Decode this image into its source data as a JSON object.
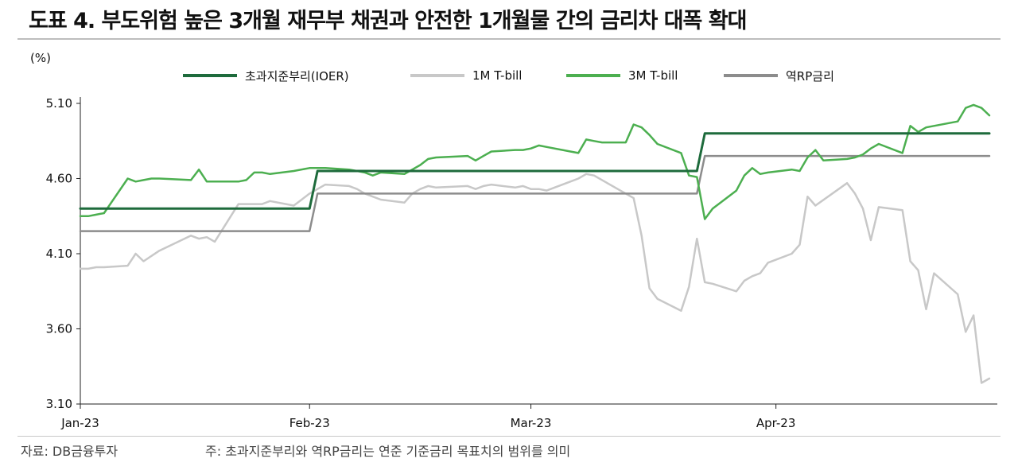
{
  "title": "도표 4. 부도위험 높은 3개월 재무부 채권과 안전한 1개월물 간의 금리차 대폭 확대",
  "unit_label": "(%)",
  "source": "자료: DB금융투자",
  "note": "주: 초과지준부리와 역RP금리는 연준 기준금리 목표치의 범위를 의미",
  "chart_data": {
    "type": "line",
    "title": "",
    "xlabel": "",
    "ylabel": "(%)",
    "ylim": [
      3.1,
      5.1
    ],
    "yticks": [
      "5.10",
      "4.60",
      "4.10",
      "3.60",
      "3.10"
    ],
    "xticks": [
      "Jan-23",
      "Feb-23",
      "Mar-23",
      "Apr-23"
    ],
    "xticks_dates": [
      "2023-01-03",
      "2023-02-01",
      "2023-03-01",
      "2023-04-01"
    ],
    "x_range": [
      "2023-01-03",
      "2023-04-28"
    ],
    "grid": false,
    "legend_position": "top",
    "series": [
      {
        "name": "초과지준부리(IOER)",
        "color": "#1e6b3c",
        "points": [
          [
            "2023-01-03",
            4.4
          ],
          [
            "2023-02-01",
            4.4
          ],
          [
            "2023-02-02",
            4.65
          ],
          [
            "2023-03-22",
            4.65
          ],
          [
            "2023-03-23",
            4.9
          ],
          [
            "2023-04-28",
            4.9
          ]
        ]
      },
      {
        "name": "1M T-bill",
        "color": "#c8c8c8",
        "points": [
          [
            "2023-01-03",
            4.0
          ],
          [
            "2023-01-04",
            4.0
          ],
          [
            "2023-01-05",
            4.01
          ],
          [
            "2023-01-06",
            4.01
          ],
          [
            "2023-01-09",
            4.02
          ],
          [
            "2023-01-10",
            4.1
          ],
          [
            "2023-01-11",
            4.05
          ],
          [
            "2023-01-13",
            4.12
          ],
          [
            "2023-01-17",
            4.22
          ],
          [
            "2023-01-18",
            4.2
          ],
          [
            "2023-01-19",
            4.21
          ],
          [
            "2023-01-20",
            4.18
          ],
          [
            "2023-01-23",
            4.43
          ],
          [
            "2023-01-24",
            4.43
          ],
          [
            "2023-01-25",
            4.43
          ],
          [
            "2023-01-26",
            4.43
          ],
          [
            "2023-01-27",
            4.45
          ],
          [
            "2023-01-30",
            4.42
          ],
          [
            "2023-01-31",
            4.46
          ],
          [
            "2023-02-01",
            4.5
          ],
          [
            "2023-02-03",
            4.56
          ],
          [
            "2023-02-06",
            4.55
          ],
          [
            "2023-02-07",
            4.53
          ],
          [
            "2023-02-08",
            4.5
          ],
          [
            "2023-02-09",
            4.48
          ],
          [
            "2023-02-10",
            4.46
          ],
          [
            "2023-02-13",
            4.44
          ],
          [
            "2023-02-14",
            4.5
          ],
          [
            "2023-02-15",
            4.53
          ],
          [
            "2023-02-16",
            4.55
          ],
          [
            "2023-02-17",
            4.54
          ],
          [
            "2023-02-21",
            4.55
          ],
          [
            "2023-02-22",
            4.53
          ],
          [
            "2023-02-23",
            4.55
          ],
          [
            "2023-02-24",
            4.56
          ],
          [
            "2023-02-27",
            4.54
          ],
          [
            "2023-02-28",
            4.55
          ],
          [
            "2023-03-01",
            4.53
          ],
          [
            "2023-03-02",
            4.53
          ],
          [
            "2023-03-03",
            4.52
          ],
          [
            "2023-03-06",
            4.58
          ],
          [
            "2023-03-07",
            4.6
          ],
          [
            "2023-03-08",
            4.63
          ],
          [
            "2023-03-09",
            4.62
          ],
          [
            "2023-03-10",
            4.59
          ],
          [
            "2023-03-13",
            4.5
          ],
          [
            "2023-03-14",
            4.47
          ],
          [
            "2023-03-15",
            4.22
          ],
          [
            "2023-03-16",
            3.87
          ],
          [
            "2023-03-17",
            3.8
          ],
          [
            "2023-03-20",
            3.72
          ],
          [
            "2023-03-21",
            3.88
          ],
          [
            "2023-03-22",
            4.2
          ],
          [
            "2023-03-23",
            3.91
          ],
          [
            "2023-03-24",
            3.9
          ],
          [
            "2023-03-27",
            3.85
          ],
          [
            "2023-03-28",
            3.92
          ],
          [
            "2023-03-29",
            3.95
          ],
          [
            "2023-03-30",
            3.97
          ],
          [
            "2023-03-31",
            4.04
          ],
          [
            "2023-04-03",
            4.1
          ],
          [
            "2023-04-04",
            4.16
          ],
          [
            "2023-04-05",
            4.48
          ],
          [
            "2023-04-06",
            4.42
          ],
          [
            "2023-04-10",
            4.57
          ],
          [
            "2023-04-11",
            4.5
          ],
          [
            "2023-04-12",
            4.4
          ],
          [
            "2023-04-13",
            4.19
          ],
          [
            "2023-04-14",
            4.41
          ],
          [
            "2023-04-17",
            4.39
          ],
          [
            "2023-04-18",
            4.05
          ],
          [
            "2023-04-19",
            3.99
          ],
          [
            "2023-04-20",
            3.73
          ],
          [
            "2023-04-21",
            3.97
          ],
          [
            "2023-04-24",
            3.83
          ],
          [
            "2023-04-25",
            3.58
          ],
          [
            "2023-04-26",
            3.69
          ],
          [
            "2023-04-27",
            3.24
          ],
          [
            "2023-04-28",
            3.27
          ]
        ]
      },
      {
        "name": "3M T-bill",
        "color": "#4caf50",
        "points": [
          [
            "2023-01-03",
            4.35
          ],
          [
            "2023-01-04",
            4.35
          ],
          [
            "2023-01-05",
            4.36
          ],
          [
            "2023-01-06",
            4.37
          ],
          [
            "2023-01-09",
            4.6
          ],
          [
            "2023-01-10",
            4.58
          ],
          [
            "2023-01-11",
            4.59
          ],
          [
            "2023-01-12",
            4.6
          ],
          [
            "2023-01-13",
            4.6
          ],
          [
            "2023-01-17",
            4.59
          ],
          [
            "2023-01-18",
            4.66
          ],
          [
            "2023-01-19",
            4.58
          ],
          [
            "2023-01-20",
            4.58
          ],
          [
            "2023-01-23",
            4.58
          ],
          [
            "2023-01-24",
            4.59
          ],
          [
            "2023-01-25",
            4.64
          ],
          [
            "2023-01-26",
            4.64
          ],
          [
            "2023-01-27",
            4.63
          ],
          [
            "2023-01-30",
            4.65
          ],
          [
            "2023-02-01",
            4.67
          ],
          [
            "2023-02-02",
            4.67
          ],
          [
            "2023-02-03",
            4.67
          ],
          [
            "2023-02-06",
            4.66
          ],
          [
            "2023-02-07",
            4.65
          ],
          [
            "2023-02-08",
            4.64
          ],
          [
            "2023-02-09",
            4.62
          ],
          [
            "2023-02-10",
            4.64
          ],
          [
            "2023-02-13",
            4.63
          ],
          [
            "2023-02-14",
            4.66
          ],
          [
            "2023-02-15",
            4.69
          ],
          [
            "2023-02-16",
            4.73
          ],
          [
            "2023-02-17",
            4.74
          ],
          [
            "2023-02-21",
            4.75
          ],
          [
            "2023-02-22",
            4.72
          ],
          [
            "2023-02-23",
            4.75
          ],
          [
            "2023-02-24",
            4.78
          ],
          [
            "2023-02-27",
            4.79
          ],
          [
            "2023-02-28",
            4.79
          ],
          [
            "2023-03-01",
            4.8
          ],
          [
            "2023-03-02",
            4.82
          ],
          [
            "2023-03-03",
            4.81
          ],
          [
            "2023-03-06",
            4.78
          ],
          [
            "2023-03-07",
            4.77
          ],
          [
            "2023-03-08",
            4.86
          ],
          [
            "2023-03-09",
            4.85
          ],
          [
            "2023-03-10",
            4.84
          ],
          [
            "2023-03-13",
            4.84
          ],
          [
            "2023-03-14",
            4.96
          ],
          [
            "2023-03-15",
            4.94
          ],
          [
            "2023-03-16",
            4.89
          ],
          [
            "2023-03-17",
            4.83
          ],
          [
            "2023-03-20",
            4.77
          ],
          [
            "2023-03-21",
            4.62
          ],
          [
            "2023-03-22",
            4.61
          ],
          [
            "2023-03-23",
            4.33
          ],
          [
            "2023-03-24",
            4.4
          ],
          [
            "2023-03-27",
            4.52
          ],
          [
            "2023-03-28",
            4.62
          ],
          [
            "2023-03-29",
            4.67
          ],
          [
            "2023-03-30",
            4.63
          ],
          [
            "2023-03-31",
            4.64
          ],
          [
            "2023-04-03",
            4.66
          ],
          [
            "2023-04-04",
            4.65
          ],
          [
            "2023-04-05",
            4.74
          ],
          [
            "2023-04-06",
            4.79
          ],
          [
            "2023-04-07",
            4.72
          ],
          [
            "2023-04-10",
            4.73
          ],
          [
            "2023-04-11",
            4.74
          ],
          [
            "2023-04-12",
            4.76
          ],
          [
            "2023-04-13",
            4.8
          ],
          [
            "2023-04-14",
            4.83
          ],
          [
            "2023-04-17",
            4.77
          ],
          [
            "2023-04-18",
            4.95
          ],
          [
            "2023-04-19",
            4.91
          ],
          [
            "2023-04-20",
            4.94
          ],
          [
            "2023-04-21",
            4.95
          ],
          [
            "2023-04-24",
            4.98
          ],
          [
            "2023-04-25",
            5.07
          ],
          [
            "2023-04-26",
            5.09
          ],
          [
            "2023-04-27",
            5.07
          ],
          [
            "2023-04-28",
            5.02
          ]
        ]
      },
      {
        "name": "역RP금리",
        "color": "#8c8c8c",
        "points": [
          [
            "2023-01-03",
            4.25
          ],
          [
            "2023-02-01",
            4.25
          ],
          [
            "2023-02-02",
            4.5
          ],
          [
            "2023-03-22",
            4.5
          ],
          [
            "2023-03-23",
            4.75
          ],
          [
            "2023-04-28",
            4.75
          ]
        ]
      }
    ]
  }
}
